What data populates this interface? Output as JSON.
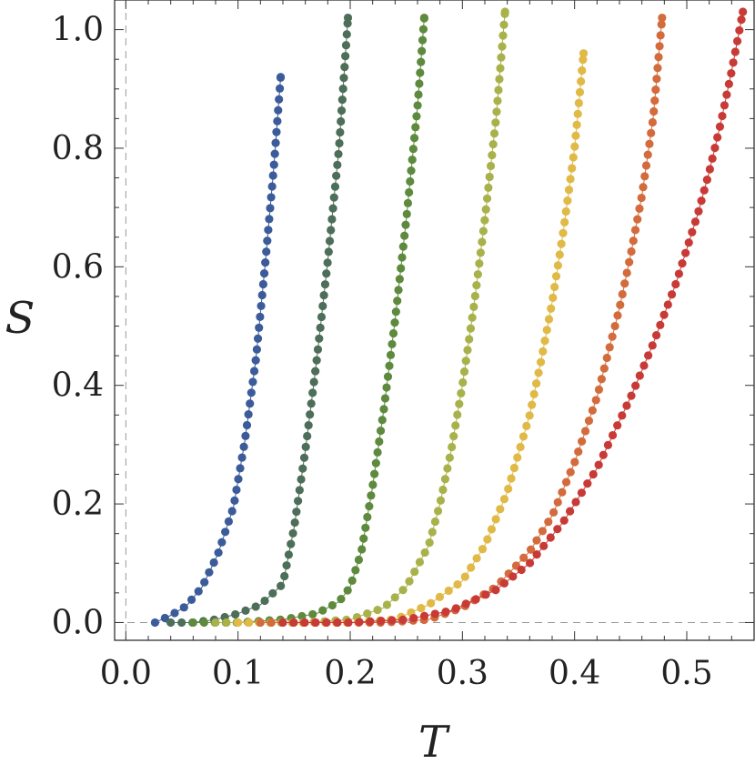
{
  "chart_data": {
    "type": "scatter",
    "title": "",
    "xlabel": "T",
    "ylabel": "S",
    "xlim": [
      -0.01,
      0.56
    ],
    "ylim": [
      -0.03,
      1.05
    ],
    "xticks": [
      0.0,
      0.1,
      0.2,
      0.3,
      0.4,
      0.5
    ],
    "xtick_labels": [
      "0.0",
      "0.1",
      "0.2",
      "0.3",
      "0.4",
      "0.5"
    ],
    "yticks": [
      0.0,
      0.2,
      0.4,
      0.6,
      0.8,
      1.0
    ],
    "ytick_labels": [
      "0.0",
      "0.2",
      "0.4",
      "0.6",
      "0.8",
      "1.0"
    ],
    "grid": false,
    "legend": "none",
    "reference_lines": [
      "x = 0 (dashed)",
      "y = 0 (dashed)"
    ],
    "markers": "filled circles joined by thin line",
    "series": [
      {
        "color": "#3b5b9a",
        "x": [
          0.026,
          0.04,
          0.054,
          0.068,
          0.082,
          0.096,
          0.106,
          0.116,
          0.124,
          0.132,
          0.138
        ],
        "y": [
          0.0,
          0.012,
          0.028,
          0.06,
          0.115,
          0.195,
          0.305,
          0.445,
          0.6,
          0.77,
          0.92
        ]
      },
      {
        "color": "#4d6e58",
        "x": [
          0.04,
          0.06,
          0.08,
          0.1,
          0.12,
          0.14,
          0.15,
          0.16,
          0.17,
          0.18,
          0.19,
          0.198
        ],
        "y": [
          0.0,
          0.0,
          0.005,
          0.015,
          0.03,
          0.065,
          0.16,
          0.29,
          0.44,
          0.61,
          0.8,
          1.02
        ]
      },
      {
        "color": "#5e8a3e",
        "x": [
          0.06,
          0.1,
          0.14,
          0.17,
          0.19,
          0.2,
          0.21,
          0.22,
          0.23,
          0.24,
          0.25,
          0.26,
          0.266
        ],
        "y": [
          0.0,
          0.0,
          0.005,
          0.015,
          0.035,
          0.06,
          0.12,
          0.23,
          0.36,
          0.51,
          0.68,
          0.87,
          1.02
        ]
      },
      {
        "color": "#a9b24a",
        "x": [
          0.08,
          0.12,
          0.16,
          0.2,
          0.23,
          0.25,
          0.27,
          0.28,
          0.29,
          0.3,
          0.31,
          0.32,
          0.33,
          0.338
        ],
        "y": [
          0.0,
          0.0,
          0.0,
          0.005,
          0.025,
          0.06,
          0.13,
          0.2,
          0.29,
          0.4,
          0.53,
          0.68,
          0.85,
          1.03
        ]
      },
      {
        "color": "#e0b947",
        "x": [
          0.1,
          0.15,
          0.2,
          0.24,
          0.27,
          0.3,
          0.32,
          0.34,
          0.36,
          0.37,
          0.38,
          0.39,
          0.4,
          0.408
        ],
        "y": [
          0.0,
          0.0,
          0.0,
          0.005,
          0.03,
          0.07,
          0.13,
          0.22,
          0.35,
          0.44,
          0.54,
          0.66,
          0.8,
          0.96
        ]
      },
      {
        "color": "#d36b3c",
        "x": [
          0.12,
          0.18,
          0.23,
          0.27,
          0.3,
          0.33,
          0.36,
          0.38,
          0.4,
          0.42,
          0.44,
          0.45,
          0.46,
          0.47,
          0.478
        ],
        "y": [
          0.0,
          0.0,
          0.0,
          0.005,
          0.025,
          0.06,
          0.12,
          0.18,
          0.27,
          0.38,
          0.53,
          0.62,
          0.72,
          0.85,
          1.02
        ]
      },
      {
        "color": "#c83a36",
        "x": [
          0.14,
          0.2,
          0.25,
          0.29,
          0.33,
          0.36,
          0.39,
          0.42,
          0.45,
          0.47,
          0.49,
          0.51,
          0.52,
          0.53,
          0.54,
          0.55
        ],
        "y": [
          0.0,
          0.0,
          0.005,
          0.02,
          0.055,
          0.1,
          0.17,
          0.26,
          0.38,
          0.47,
          0.57,
          0.69,
          0.76,
          0.84,
          0.93,
          1.03
        ]
      }
    ]
  }
}
